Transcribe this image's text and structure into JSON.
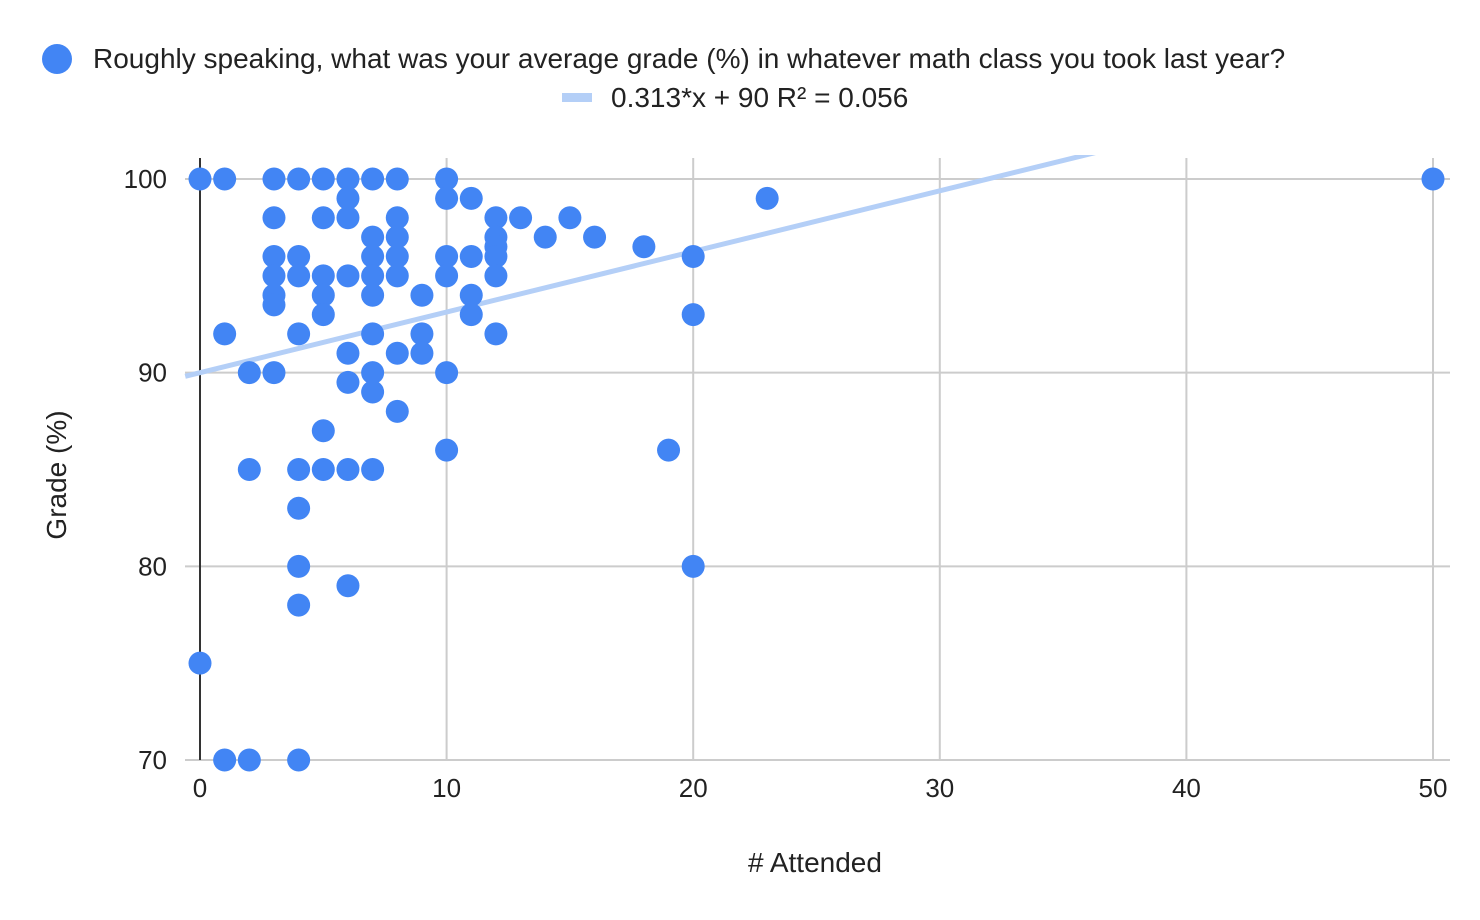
{
  "chart_data": {
    "type": "scatter",
    "title": "",
    "xlabel": "# Attended",
    "ylabel": "Grade (%)",
    "xlim": [
      0,
      50
    ],
    "ylim": [
      70,
      100
    ],
    "xticks": [
      0,
      10,
      20,
      30,
      40,
      50
    ],
    "yticks": [
      70,
      80,
      90,
      100
    ],
    "grid": true,
    "legend_position": "top",
    "colors": {
      "points": "#4285f4",
      "trendline": "#b4cff7",
      "gridline": "#cccccc",
      "zero_axis": "#333333"
    },
    "series": [
      {
        "name": "Roughly speaking, what was your average grade (%) in whatever math class you took last year?",
        "points": [
          [
            0,
            100
          ],
          [
            1,
            100
          ],
          [
            3,
            100
          ],
          [
            4,
            100
          ],
          [
            5,
            100
          ],
          [
            6,
            100
          ],
          [
            7,
            100
          ],
          [
            8,
            100
          ],
          [
            10,
            100
          ],
          [
            50,
            100
          ],
          [
            6,
            99
          ],
          [
            10,
            99
          ],
          [
            11,
            99
          ],
          [
            23,
            99
          ],
          [
            3,
            98
          ],
          [
            5,
            98
          ],
          [
            6,
            98
          ],
          [
            8,
            98
          ],
          [
            12,
            98
          ],
          [
            13,
            98
          ],
          [
            15,
            98
          ],
          [
            7,
            97
          ],
          [
            8,
            97
          ],
          [
            12,
            97
          ],
          [
            14,
            97
          ],
          [
            16,
            97
          ],
          [
            12,
            96.5
          ],
          [
            18,
            96.5
          ],
          [
            3,
            96
          ],
          [
            4,
            96
          ],
          [
            7,
            96
          ],
          [
            8,
            96
          ],
          [
            10,
            96
          ],
          [
            11,
            96
          ],
          [
            12,
            96
          ],
          [
            20,
            96
          ],
          [
            3,
            95
          ],
          [
            4,
            95
          ],
          [
            5,
            95
          ],
          [
            6,
            95
          ],
          [
            7,
            95
          ],
          [
            8,
            95
          ],
          [
            10,
            95
          ],
          [
            12,
            95
          ],
          [
            3,
            94
          ],
          [
            5,
            94
          ],
          [
            7,
            94
          ],
          [
            9,
            94
          ],
          [
            11,
            94
          ],
          [
            3,
            93.5
          ],
          [
            5,
            93
          ],
          [
            11,
            93
          ],
          [
            20,
            93
          ],
          [
            1,
            92
          ],
          [
            4,
            92
          ],
          [
            7,
            92
          ],
          [
            9,
            92
          ],
          [
            12,
            92
          ],
          [
            6,
            91
          ],
          [
            8,
            91
          ],
          [
            9,
            91
          ],
          [
            2,
            90
          ],
          [
            3,
            90
          ],
          [
            7,
            90
          ],
          [
            10,
            90
          ],
          [
            6,
            89.5
          ],
          [
            7,
            89
          ],
          [
            8,
            88
          ],
          [
            5,
            87
          ],
          [
            10,
            86
          ],
          [
            19,
            86
          ],
          [
            2,
            85
          ],
          [
            4,
            85
          ],
          [
            5,
            85
          ],
          [
            6,
            85
          ],
          [
            7,
            85
          ],
          [
            4,
            83
          ],
          [
            4,
            80
          ],
          [
            20,
            80
          ],
          [
            6,
            79
          ],
          [
            4,
            78
          ],
          [
            0,
            75
          ],
          [
            1,
            70
          ],
          [
            2,
            70
          ],
          [
            4,
            70
          ]
        ]
      }
    ],
    "trendline": {
      "name": "0.313*x + 90 R² = 0.056",
      "slope": 0.313,
      "intercept": 90
    }
  }
}
